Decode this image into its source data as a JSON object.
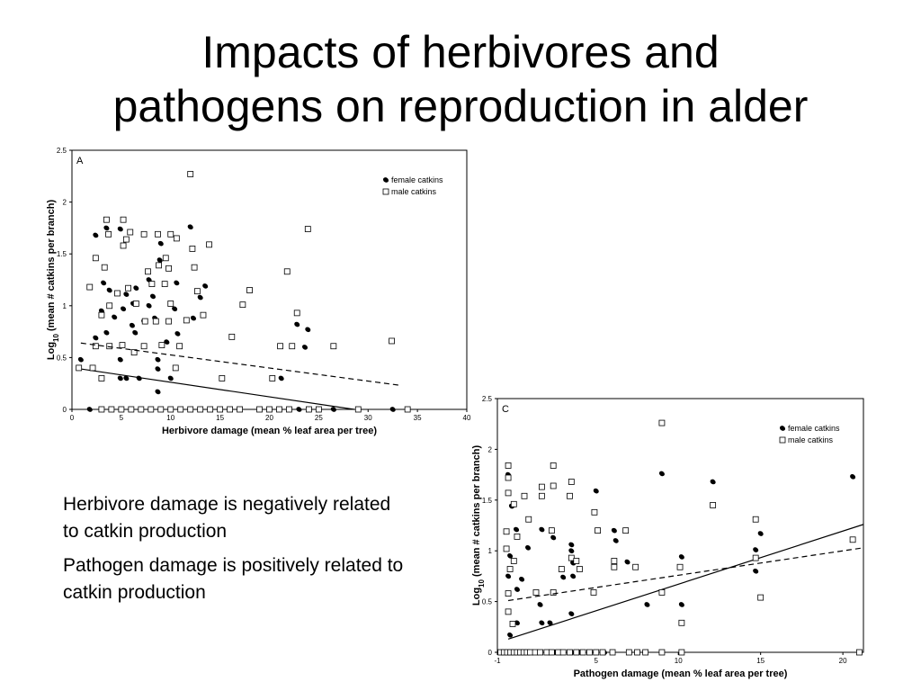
{
  "slide": {
    "title": [
      "Impacts of herbivores and",
      "pathogens on reproduction in alder"
    ],
    "bullets": [
      "Herbivore damage is negatively related to catkin production",
      "Pathogen damage is positively related to catkin production"
    ]
  },
  "chart_data": [
    {
      "type": "scatter",
      "panel_label": "A",
      "x_label": "Herbivore damage (mean % leaf area per tree)",
      "y_label": [
        "Log",
        "10",
        " (mean # catkins per branch)"
      ],
      "xlim": [
        0,
        40
      ],
      "xticks": [
        0,
        5,
        10,
        15,
        20,
        25,
        30,
        35,
        40
      ],
      "ylim": [
        0,
        2.5
      ],
      "yticks": [
        0,
        0.5,
        1,
        1.5,
        2,
        2.5
      ],
      "legend": "upper right",
      "series": [
        {
          "name": "female catkins",
          "marker": "circle",
          "color": "#000000",
          "x": [
            2.4,
            3.5,
            4.9,
            3.2,
            3.8,
            5.5,
            6.2,
            6.5,
            7.8,
            9,
            8.9,
            12,
            10.6,
            13.5,
            13,
            8.2,
            7.8,
            3,
            4.3,
            5.2,
            6.1,
            7.3,
            8.4,
            10.4,
            12.3,
            9.6,
            10.7,
            6.4,
            3.5,
            2.4,
            4.9,
            4.9,
            5.5,
            6.8,
            8.7,
            8.7,
            8.7,
            10,
            0.9,
            22.8,
            23.9,
            23.6,
            21.2,
            1.8,
            3,
            5,
            6,
            8,
            10,
            12,
            15,
            20,
            23,
            26.5,
            32.5
          ],
          "values": [
            1.68,
            1.75,
            1.74,
            1.22,
            1.15,
            1.11,
            1.02,
            1.17,
            1.25,
            1.6,
            1.44,
            1.76,
            1.22,
            1.19,
            1.08,
            1.09,
            1.0,
            0.95,
            0.89,
            0.97,
            0.81,
            0.85,
            0.88,
            0.97,
            0.88,
            0.65,
            0.73,
            0.74,
            0.74,
            0.69,
            0.48,
            0.3,
            0.3,
            0.3,
            0.48,
            0.39,
            0.17,
            0.3,
            0.48,
            0.82,
            0.77,
            0.6,
            0.3,
            0,
            0,
            0,
            0,
            0,
            0,
            0,
            0,
            0,
            0,
            0,
            0
          ],
          "trend": {
            "x": [
              0.9,
              28.6
            ],
            "values": [
              0.39,
              0
            ],
            "dashed": false
          }
        },
        {
          "name": "male catkins",
          "marker": "square",
          "color": "#000000",
          "x": [
            12,
            3.5,
            5.2,
            23.9,
            3.7,
            7.3,
            8.7,
            10,
            5.9,
            5.5,
            5.2,
            10.6,
            13.9,
            12.2,
            2.4,
            9.5,
            8.8,
            3.3,
            7.7,
            12.4,
            21.8,
            9.8,
            1.8,
            4.6,
            8.1,
            9.4,
            12.7,
            18,
            5.7,
            17.3,
            3,
            3.8,
            10,
            6.5,
            7.4,
            9.8,
            11.6,
            13.3,
            22.8,
            8.5,
            3.8,
            5.1,
            7.3,
            9.1,
            10.9,
            16.2,
            21.1,
            22.3,
            26.5,
            32.4,
            2.4,
            2.1,
            0.7,
            6.3,
            10.5,
            3,
            15.2,
            20.3,
            3,
            4,
            5,
            6,
            7,
            8,
            9,
            10,
            11,
            12,
            13,
            14,
            15,
            16,
            17,
            19,
            20,
            21,
            22,
            24,
            25,
            29,
            34
          ],
          "values": [
            2.27,
            1.83,
            1.83,
            1.74,
            1.69,
            1.69,
            1.69,
            1.69,
            1.71,
            1.64,
            1.58,
            1.65,
            1.59,
            1.55,
            1.46,
            1.46,
            1.39,
            1.37,
            1.33,
            1.37,
            1.33,
            1.36,
            1.18,
            1.12,
            1.21,
            1.21,
            1.14,
            1.15,
            1.17,
            1.01,
            0.91,
            1.0,
            1.02,
            1.02,
            0.85,
            0.85,
            0.86,
            0.91,
            0.93,
            0.85,
            0.61,
            0.62,
            0.61,
            0.62,
            0.61,
            0.7,
            0.61,
            0.61,
            0.61,
            0.66,
            0.61,
            0.4,
            0.4,
            0.55,
            0.4,
            0.3,
            0.3,
            0.3,
            0,
            0,
            0,
            0,
            0,
            0,
            0,
            0,
            0,
            0,
            0,
            0,
            0,
            0,
            0,
            0,
            0,
            0,
            0,
            0,
            0,
            0,
            0
          ],
          "trend": {
            "x": [
              0.9,
              33.4
            ],
            "values": [
              0.64,
              0.23
            ],
            "dashed": true
          }
        }
      ]
    },
    {
      "type": "scatter",
      "panel_label": "C",
      "x_label": "Pathogen damage (mean % leaf area per tree)",
      "y_label": [
        "Log",
        "10",
        " (mean # catkins per branch)"
      ],
      "xlim": [
        -1,
        21.25
      ],
      "xticks": [
        -1,
        5,
        10,
        15,
        20
      ],
      "ylim": [
        0,
        2.5
      ],
      "yticks": [
        0,
        0.5,
        1,
        1.5,
        2,
        2.5
      ],
      "legend": "upper right",
      "series": [
        {
          "name": "female catkins",
          "marker": "circle",
          "color": "#000000",
          "x": [
            -0.34,
            -0.13,
            5.0,
            9.0,
            12.1,
            20.6,
            0.15,
            1.7,
            2.4,
            0.86,
            3.5,
            3.5,
            6.1,
            6.2,
            10.2,
            15,
            14.7,
            14.7,
            -0.34,
            0.48,
            0.2,
            1.6,
            3,
            3.6,
            3.6,
            6.9,
            8.1,
            10.2,
            9,
            3.5,
            1.7,
            2.2,
            -0.23,
            0.2,
            -0.23,
            -0.6,
            -0.3,
            0,
            0.5,
            1.3,
            2.5,
            3.5,
            4,
            5.5,
            7,
            8,
            10.2
          ],
          "values": [
            1.75,
            1.44,
            1.59,
            1.76,
            1.68,
            1.73,
            1.21,
            1.21,
            1.13,
            1.03,
            1.06,
            1.0,
            1.2,
            1.1,
            0.94,
            1.17,
            1.01,
            0.8,
            0.75,
            0.72,
            0.62,
            0.47,
            0.74,
            0.88,
            0.75,
            0.89,
            0.47,
            0.47,
            0.59,
            0.38,
            0.29,
            0.29,
            0.17,
            0.29,
            0.95,
            0,
            0,
            0,
            0,
            0,
            0,
            0,
            0,
            0,
            0,
            0,
            0
          ],
          "trend": {
            "x": [
              -0.34,
              21.25
            ],
            "values": [
              0.13,
              1.26
            ],
            "dashed": false
          }
        },
        {
          "name": "male catkins",
          "marker": "square",
          "color": "#000000",
          "x": [
            9,
            -0.34,
            2.4,
            -0.34,
            -0.34,
            0,
            0.64,
            1.7,
            1.7,
            3.4,
            3.5,
            4.9,
            2.4,
            12.1,
            14.7,
            20.6,
            -0.45,
            0.9,
            0.2,
            2.3,
            5.1,
            6.8,
            -0.45,
            -0.23,
            0,
            3.5,
            3.8,
            4.0,
            2.9,
            6.1,
            6.1,
            7.4,
            10.1,
            14.7,
            -0.34,
            1.35,
            2.4,
            4.85,
            9,
            15,
            -0.34,
            -0.07,
            10.2,
            -0.8,
            -0.6,
            -0.4,
            -0.2,
            0,
            0.2,
            0.4,
            0.6,
            0.8,
            1,
            1.3,
            1.6,
            2,
            2.3,
            2.7,
            3,
            3.4,
            3.8,
            4.2,
            4.6,
            5,
            5.4,
            6,
            7,
            7.5,
            8,
            9,
            10.2,
            21
          ],
          "values": [
            2.26,
            1.84,
            1.84,
            1.72,
            1.57,
            1.46,
            1.54,
            1.63,
            1.54,
            1.54,
            1.68,
            1.38,
            1.64,
            1.45,
            1.31,
            1.11,
            1.19,
            1.31,
            1.14,
            1.2,
            1.2,
            1.2,
            1.02,
            0.82,
            0.9,
            0.93,
            0.9,
            0.82,
            0.82,
            0.9,
            0.84,
            0.84,
            0.84,
            0.93,
            0.58,
            0.59,
            0.59,
            0.59,
            0.59,
            0.54,
            0.4,
            0.28,
            0.29,
            0,
            0,
            0,
            0,
            0,
            0,
            0,
            0,
            0,
            0,
            0,
            0,
            0,
            0,
            0,
            0,
            0,
            0,
            0,
            0,
            0,
            0,
            0,
            0,
            0,
            0,
            0,
            0,
            0
          ],
          "trend": {
            "x": [
              -0.34,
              21.25
            ],
            "values": [
              0.51,
              1.03
            ],
            "dashed": true
          }
        }
      ]
    }
  ]
}
